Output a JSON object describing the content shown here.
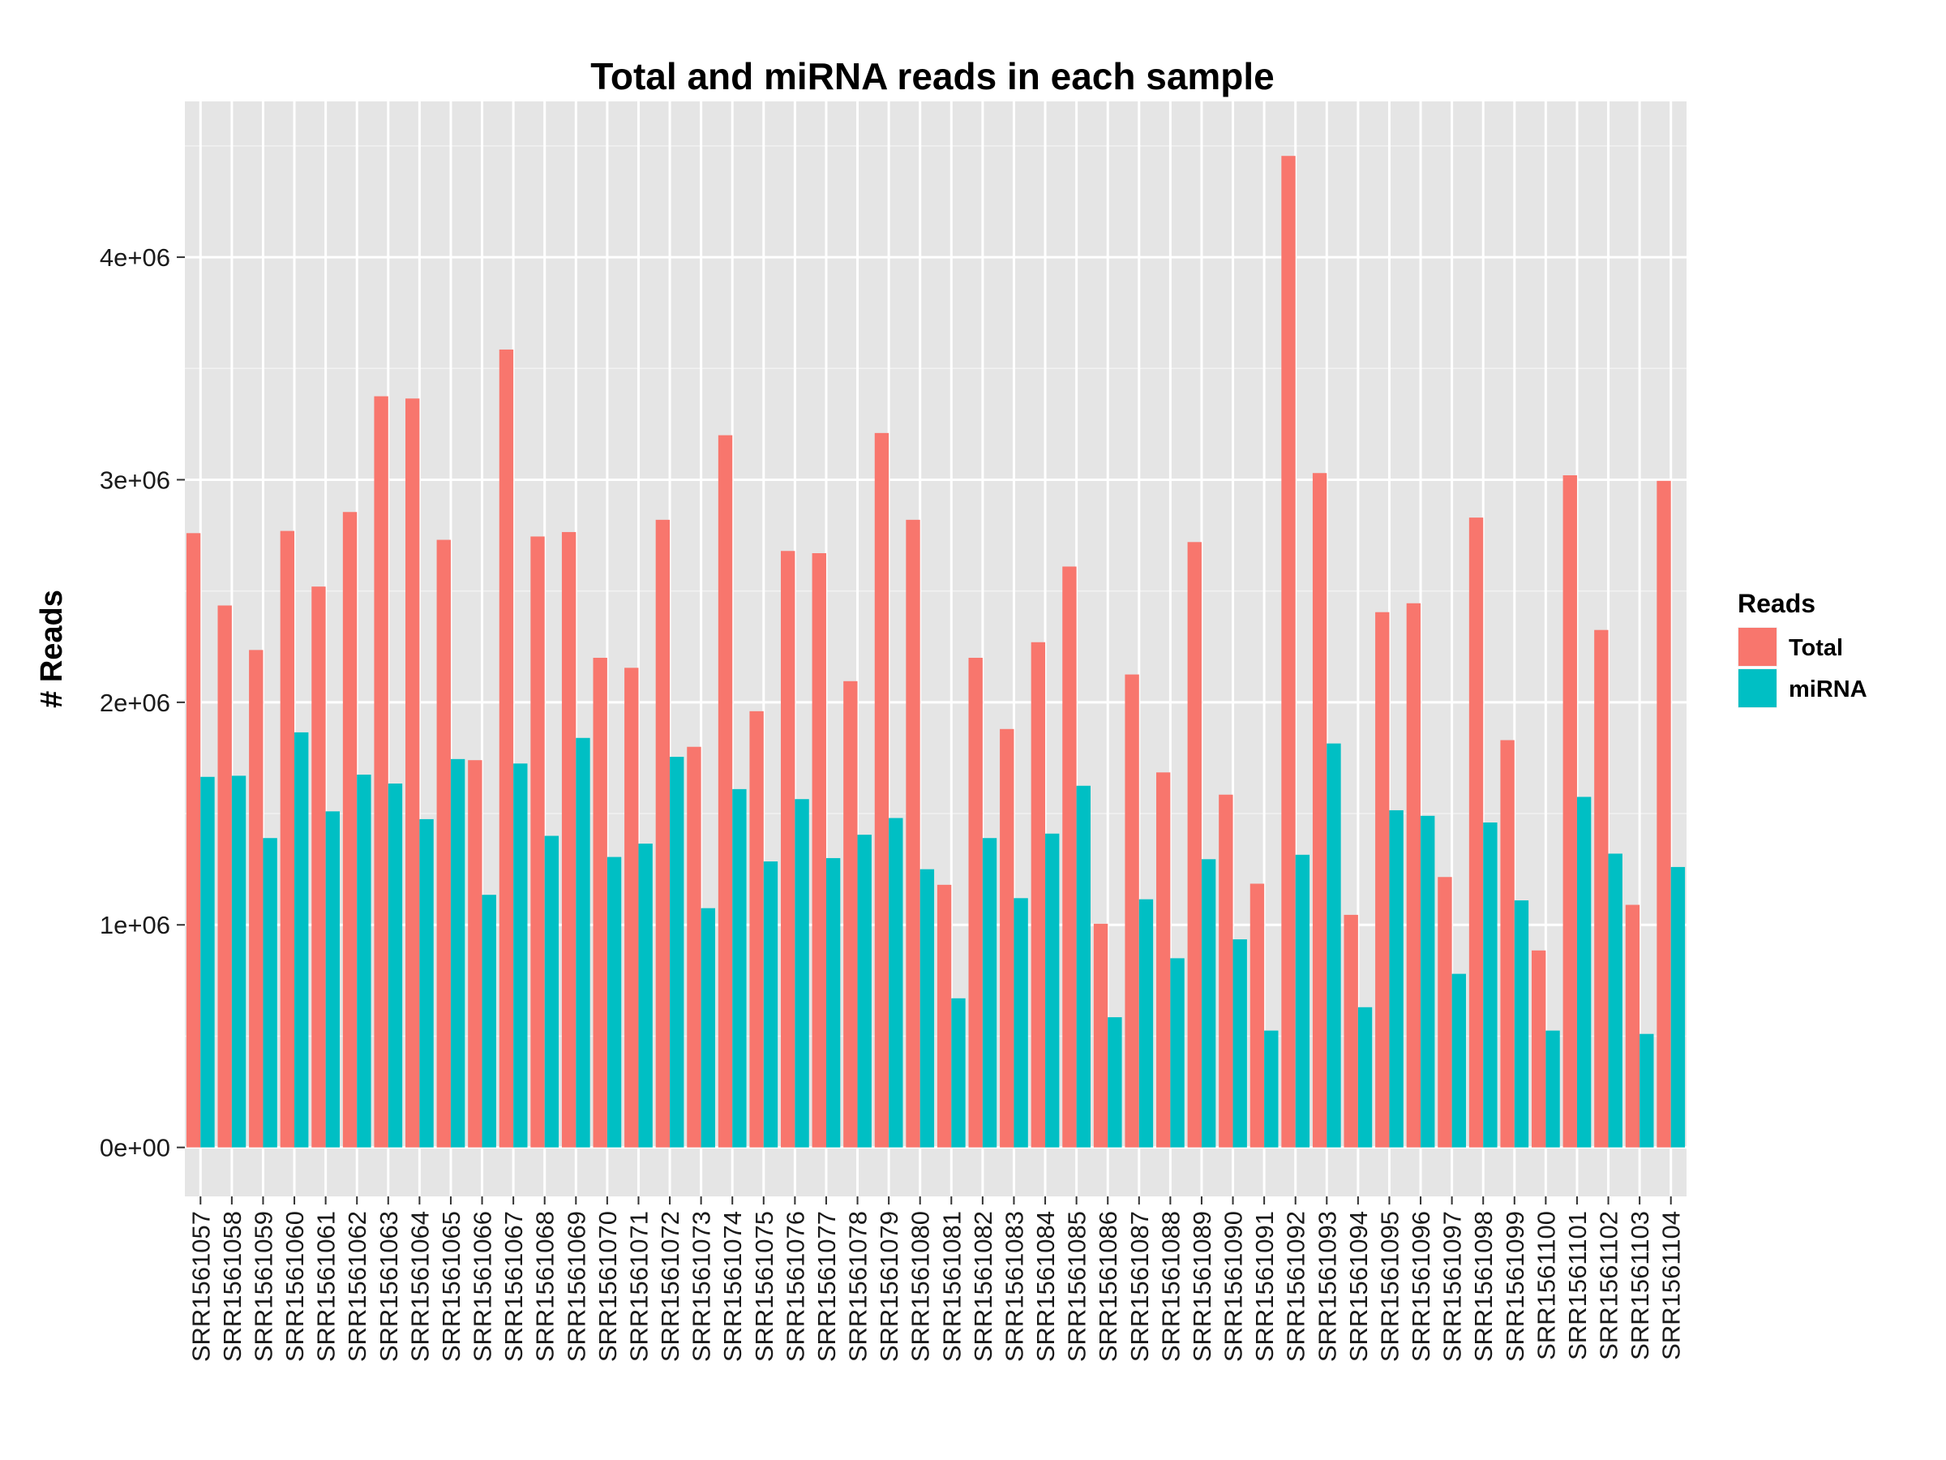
{
  "chart_data": {
    "type": "bar",
    "title": "Total and miRNA reads in each sample",
    "xlabel": "",
    "ylabel": "# Reads",
    "ylim": [
      -220000,
      4700000
    ],
    "yticks": [
      0,
      1000000,
      2000000,
      3000000,
      4000000
    ],
    "ytick_labels": [
      "0e+00",
      "1e+06",
      "2e+06",
      "3e+06",
      "4e+06"
    ],
    "grid": true,
    "legend": {
      "title": "Reads",
      "position": "right"
    },
    "categories": [
      "SRR1561057",
      "SRR1561058",
      "SRR1561059",
      "SRR1561060",
      "SRR1561061",
      "SRR1561062",
      "SRR1561063",
      "SRR1561064",
      "SRR1561065",
      "SRR1561066",
      "SRR1561067",
      "SRR1561068",
      "SRR1561069",
      "SRR1561070",
      "SRR1561071",
      "SRR1561072",
      "SRR1561073",
      "SRR1561074",
      "SRR1561075",
      "SRR1561076",
      "SRR1561077",
      "SRR1561078",
      "SRR1561079",
      "SRR1561080",
      "SRR1561081",
      "SRR1561082",
      "SRR1561083",
      "SRR1561084",
      "SRR1561085",
      "SRR1561086",
      "SRR1561087",
      "SRR1561088",
      "SRR1561089",
      "SRR1561090",
      "SRR1561091",
      "SRR1561092",
      "SRR1561093",
      "SRR1561094",
      "SRR1561095",
      "SRR1561096",
      "SRR1561097",
      "SRR1561098",
      "SRR1561099",
      "SRR1561100",
      "SRR1561101",
      "SRR1561102",
      "SRR1561103",
      "SRR1561104"
    ],
    "series": [
      {
        "name": "Total",
        "color": "#F8766D",
        "values": [
          2760000,
          2435000,
          2235000,
          2770000,
          2520000,
          2855000,
          3375000,
          3365000,
          2730000,
          1740000,
          3585000,
          2745000,
          2765000,
          2200000,
          2155000,
          2820000,
          1800000,
          3200000,
          1960000,
          2680000,
          2670000,
          2095000,
          3210000,
          2820000,
          1180000,
          2200000,
          1880000,
          2270000,
          2610000,
          1005000,
          2125000,
          1685000,
          2720000,
          1585000,
          1185000,
          4455000,
          3030000,
          1045000,
          2405000,
          2445000,
          1215000,
          2830000,
          1830000,
          885000,
          3020000,
          2325000,
          1090000,
          2995000
        ]
      },
      {
        "name": "miRNA",
        "color": "#00BFC4",
        "values": [
          1665000,
          1670000,
          1390000,
          1865000,
          1510000,
          1675000,
          1635000,
          1475000,
          1745000,
          1135000,
          1725000,
          1400000,
          1840000,
          1305000,
          1365000,
          1755000,
          1075000,
          1610000,
          1285000,
          1565000,
          1300000,
          1405000,
          1480000,
          1250000,
          670000,
          1390000,
          1120000,
          1410000,
          1625000,
          585000,
          1115000,
          850000,
          1295000,
          935000,
          525000,
          1315000,
          1815000,
          630000,
          1515000,
          1490000,
          780000,
          1460000,
          1110000,
          525000,
          1575000,
          1320000,
          510000,
          1260000
        ]
      }
    ]
  }
}
